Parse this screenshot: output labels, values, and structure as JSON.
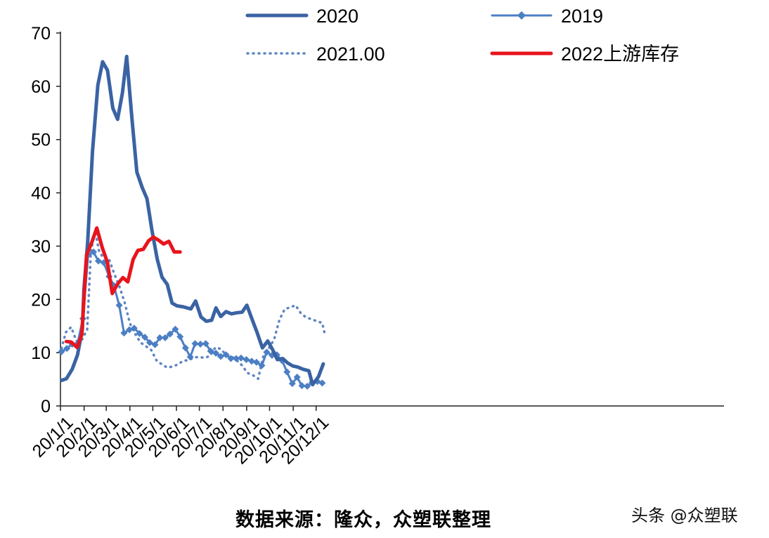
{
  "chart_data": {
    "type": "line",
    "title": "",
    "xlabel": "",
    "ylabel": "",
    "ylim": [
      0,
      70
    ],
    "yticks": [
      0,
      10,
      20,
      30,
      40,
      50,
      60,
      70
    ],
    "x_tick_labels": [
      "20/1/1",
      "20/2/1",
      "20/3/1",
      "20/4/1",
      "20/5/1",
      "20/6/1",
      "20/7/1",
      "20/8/1",
      "20/9/1",
      "20/10/1",
      "20/11/1",
      "20/12/1"
    ],
    "x_unit": "week index (0 = 20/1/1, month ticks at 0,4.43,8.57,13,17.29,21.71,26,30.43,34.86,39.14,43.57,47.86)",
    "grid": false,
    "legend_position": "top",
    "series": [
      {
        "name": "2020",
        "color": "#3a63a3",
        "style": "solid-thick",
        "points": [
          [
            0.2,
            4.8
          ],
          [
            1.1,
            5.1
          ],
          [
            2.2,
            6.9
          ],
          [
            3.2,
            9.6
          ],
          [
            4.1,
            14.4
          ],
          [
            4.4,
            21.9
          ],
          [
            5.1,
            30.9
          ],
          [
            6.0,
            47.8
          ],
          [
            7.0,
            60.2
          ],
          [
            7.9,
            64.6
          ],
          [
            8.8,
            63.0
          ],
          [
            9.8,
            55.9
          ],
          [
            10.7,
            53.8
          ],
          [
            11.6,
            58.8
          ],
          [
            12.4,
            65.6
          ],
          [
            13.4,
            53.8
          ],
          [
            14.3,
            43.9
          ],
          [
            15.3,
            41.0
          ],
          [
            16.2,
            38.9
          ],
          [
            17.1,
            33.1
          ],
          [
            18.1,
            27.6
          ],
          [
            19.0,
            24.2
          ],
          [
            20.0,
            22.8
          ],
          [
            20.9,
            19.3
          ],
          [
            21.8,
            18.8
          ],
          [
            23.0,
            18.6
          ],
          [
            24.4,
            18.2
          ],
          [
            25.3,
            19.7
          ],
          [
            26.3,
            16.7
          ],
          [
            27.3,
            15.9
          ],
          [
            28.3,
            16.1
          ],
          [
            29.1,
            18.4
          ],
          [
            30.0,
            16.8
          ],
          [
            31.0,
            17.7
          ],
          [
            32.0,
            17.3
          ],
          [
            33.0,
            17.5
          ],
          [
            34.0,
            17.6
          ],
          [
            34.9,
            18.9
          ],
          [
            35.9,
            16.2
          ],
          [
            36.8,
            13.8
          ],
          [
            37.8,
            10.9
          ],
          [
            38.8,
            12.2
          ],
          [
            39.7,
            10.6
          ],
          [
            40.6,
            8.7
          ],
          [
            41.6,
            8.9
          ],
          [
            42.5,
            8.1
          ],
          [
            43.5,
            7.5
          ],
          [
            44.4,
            7.3
          ],
          [
            45.4,
            6.9
          ],
          [
            46.5,
            6.6
          ],
          [
            47.2,
            4.0
          ],
          [
            48.3,
            5.5
          ],
          [
            49.2,
            7.9
          ]
        ]
      },
      {
        "name": "2019",
        "color": "#4c7fc4",
        "style": "solid-diamond",
        "points": [
          [
            0.2,
            10.2
          ],
          [
            1.2,
            10.8
          ],
          [
            2.2,
            11.6
          ],
          [
            3.2,
            11.7
          ],
          [
            4.2,
            16.4
          ],
          [
            5.2,
            28.4
          ],
          [
            6.2,
            28.9
          ],
          [
            7.1,
            27.2
          ],
          [
            8.1,
            26.9
          ],
          [
            9.1,
            24.3
          ],
          [
            10.0,
            22.6
          ],
          [
            11.0,
            18.9
          ],
          [
            11.9,
            13.7
          ],
          [
            12.9,
            14.3
          ],
          [
            13.8,
            14.6
          ],
          [
            14.8,
            13.6
          ],
          [
            15.8,
            12.9
          ],
          [
            16.7,
            11.9
          ],
          [
            17.7,
            11.5
          ],
          [
            18.6,
            12.8
          ],
          [
            19.6,
            12.8
          ],
          [
            20.5,
            13.5
          ],
          [
            21.5,
            14.4
          ],
          [
            22.4,
            13.0
          ],
          [
            23.4,
            10.9
          ],
          [
            24.3,
            9.2
          ],
          [
            25.2,
            11.7
          ],
          [
            26.2,
            11.6
          ],
          [
            27.2,
            11.7
          ],
          [
            28.1,
            10.3
          ],
          [
            29.1,
            9.9
          ],
          [
            30.0,
            9.3
          ],
          [
            31.0,
            9.6
          ],
          [
            31.9,
            8.9
          ],
          [
            32.9,
            8.9
          ],
          [
            33.8,
            9.0
          ],
          [
            34.8,
            8.7
          ],
          [
            35.8,
            8.4
          ],
          [
            36.7,
            8.2
          ],
          [
            37.7,
            7.6
          ],
          [
            38.6,
            10.1
          ],
          [
            39.6,
            9.5
          ],
          [
            40.5,
            9.6
          ],
          [
            41.5,
            8.5
          ],
          [
            42.4,
            6.4
          ],
          [
            43.4,
            4.2
          ],
          [
            44.3,
            5.4
          ],
          [
            45.2,
            3.8
          ],
          [
            46.2,
            3.7
          ],
          [
            47.1,
            4.4
          ],
          [
            48.1,
            4.6
          ],
          [
            49.0,
            4.3
          ]
        ]
      },
      {
        "name": "2021.00",
        "color": "#5e86c2",
        "style": "dotted",
        "points": [
          [
            0.2,
            10.8
          ],
          [
            1.0,
            13.8
          ],
          [
            2.0,
            14.8
          ],
          [
            3.0,
            12.2
          ],
          [
            4.0,
            12.4
          ],
          [
            5.0,
            14.3
          ],
          [
            5.7,
            29.0
          ],
          [
            6.5,
            32.8
          ],
          [
            7.2,
            29.2
          ],
          [
            8.0,
            27.8
          ],
          [
            9.0,
            27.8
          ],
          [
            10.0,
            25.0
          ],
          [
            11.0,
            22.5
          ],
          [
            12.0,
            19.5
          ],
          [
            13.0,
            15.5
          ],
          [
            14.0,
            13.5
          ],
          [
            15.0,
            11.9
          ],
          [
            16.0,
            11.2
          ],
          [
            17.0,
            10.5
          ],
          [
            18.0,
            8.5
          ],
          [
            19.0,
            7.8
          ],
          [
            20.0,
            7.2
          ],
          [
            21.0,
            7.4
          ],
          [
            22.0,
            7.8
          ],
          [
            23.0,
            8.5
          ],
          [
            24.0,
            8.6
          ],
          [
            25.0,
            9.1
          ],
          [
            26.0,
            9.2
          ],
          [
            27.0,
            9.0
          ],
          [
            28.0,
            9.4
          ],
          [
            29.0,
            11.0
          ],
          [
            30.0,
            10.7
          ],
          [
            31.0,
            9.6
          ],
          [
            32.0,
            9.3
          ],
          [
            33.0,
            8.6
          ],
          [
            34.0,
            7.6
          ],
          [
            35.0,
            6.2
          ],
          [
            36.0,
            5.8
          ],
          [
            37.0,
            5.1
          ],
          [
            38.0,
            9.4
          ],
          [
            39.0,
            10.8
          ],
          [
            40.0,
            12.5
          ],
          [
            41.0,
            16.2
          ],
          [
            42.0,
            18.2
          ],
          [
            43.0,
            18.5
          ],
          [
            44.0,
            18.9
          ],
          [
            45.0,
            17.4
          ],
          [
            46.0,
            16.6
          ],
          [
            47.0,
            16.3
          ],
          [
            48.0,
            15.9
          ],
          [
            49.0,
            15.6
          ],
          [
            49.5,
            13.4
          ]
        ]
      },
      {
        "name": "2022上游库存",
        "color": "#e8141c",
        "style": "solid-thick",
        "points": [
          [
            1.1,
            12.1
          ],
          [
            2.0,
            12.0
          ],
          [
            3.1,
            11.0
          ],
          [
            4.0,
            13.4
          ],
          [
            4.9,
            28.3
          ],
          [
            5.9,
            30.8
          ],
          [
            6.8,
            33.4
          ],
          [
            7.8,
            29.8
          ],
          [
            8.8,
            26.9
          ],
          [
            9.7,
            21.1
          ],
          [
            10.7,
            22.9
          ],
          [
            11.7,
            24.1
          ],
          [
            12.6,
            23.3
          ],
          [
            13.6,
            27.5
          ],
          [
            14.5,
            29.2
          ],
          [
            15.5,
            29.4
          ],
          [
            16.5,
            31.0
          ],
          [
            17.4,
            31.7
          ],
          [
            18.4,
            31.1
          ],
          [
            19.3,
            30.4
          ],
          [
            20.3,
            30.9
          ],
          [
            21.3,
            28.9
          ],
          [
            22.4,
            28.9
          ]
        ]
      }
    ]
  },
  "source_note": "数据来源：隆众，众塑联整理",
  "watermark": "头条 @众塑联"
}
